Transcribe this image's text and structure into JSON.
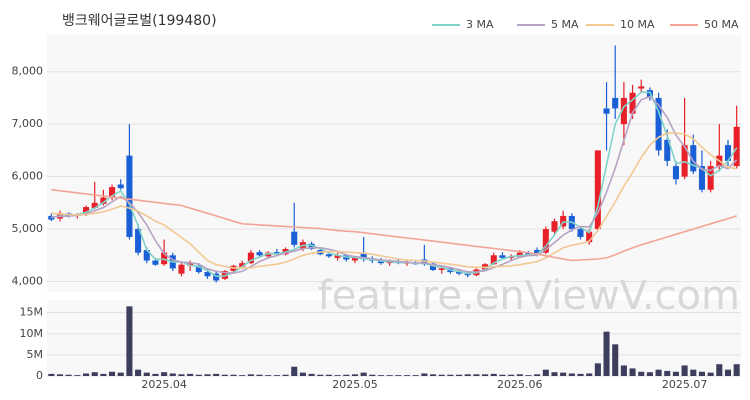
{
  "chart_data": [
    {
      "type": "candlestick",
      "title": "뱅크웨어글로벌(199480)",
      "watermark": "feature.enViewV.com",
      "up_color": "#e8202a",
      "down_color": "#1a5fd6",
      "grid": true,
      "ylim": [
        3800,
        8700
      ],
      "yticks": [
        {
          "value": 4000,
          "label": "4,000"
        },
        {
          "value": 5000,
          "label": "5,000"
        },
        {
          "value": 6000,
          "label": "6,000"
        },
        {
          "value": 7000,
          "label": "7,000"
        },
        {
          "value": 8000,
          "label": "8,000"
        }
      ],
      "open": [
        5250,
        5200,
        5300,
        5250,
        5280,
        5400,
        5480,
        5600,
        5850,
        6400,
        5000,
        4600,
        4400,
        4330,
        4500,
        4150,
        4300,
        4300,
        4180,
        4150,
        4050,
        4200,
        4280,
        4350,
        4560,
        4480,
        4560,
        4520,
        4950,
        4620,
        4720,
        4600,
        4520,
        4450,
        4500,
        4400,
        4550,
        4420,
        4400,
        4350,
        4380,
        4350,
        4360,
        4420,
        4340,
        4220,
        4250,
        4180,
        4150,
        4120,
        4230,
        4330,
        4500,
        4450,
        4470,
        4550,
        4600,
        4550,
        4950,
        5050,
        5250,
        5000,
        4750,
        5000,
        7300,
        7500,
        7000,
        7200,
        7680,
        7650,
        7500,
        6700,
        6200,
        6000,
        6600,
        6200,
        5750,
        6200,
        6600,
        6200
      ],
      "high": [
        5300,
        5350,
        5320,
        5300,
        5450,
        5900,
        5750,
        5850,
        5950,
        7000,
        5100,
        4650,
        4450,
        4800,
        4550,
        4350,
        4400,
        4350,
        4250,
        4200,
        4220,
        4320,
        4400,
        4600,
        4600,
        4580,
        4620,
        4650,
        5500,
        4800,
        4760,
        4650,
        4580,
        4550,
        4520,
        4480,
        4850,
        4480,
        4450,
        4420,
        4420,
        4400,
        4400,
        4700,
        4380,
        4280,
        4280,
        4220,
        4200,
        4250,
        4350,
        4550,
        4560,
        4520,
        4600,
        4580,
        4650,
        5050,
        5200,
        5350,
        5300,
        5050,
        5000,
        6500,
        7800,
        8500,
        7800,
        7750,
        7850,
        7700,
        7600,
        6900,
        6300,
        7500,
        6800,
        6500,
        6300,
        7000,
        6700,
        7350
      ],
      "low": [
        5150,
        5150,
        5220,
        5200,
        5250,
        5380,
        5450,
        5550,
        5750,
        4800,
        4500,
        4350,
        4300,
        4300,
        4200,
        4100,
        4200,
        4150,
        4050,
        3980,
        4030,
        4150,
        4250,
        4330,
        4480,
        4450,
        4500,
        4500,
        4650,
        4580,
        4600,
        4500,
        4450,
        4400,
        4380,
        4350,
        4380,
        4350,
        4320,
        4300,
        4330,
        4300,
        4320,
        4300,
        4200,
        4150,
        4150,
        4120,
        4080,
        4100,
        4200,
        4320,
        4420,
        4400,
        4450,
        4480,
        4480,
        4520,
        4900,
        5000,
        4950,
        4800,
        4700,
        4950,
        6500,
        7100,
        6600,
        7100,
        7600,
        7450,
        6400,
        6200,
        5850,
        5950,
        6050,
        5700,
        5700,
        6100,
        6200,
        6150
      ],
      "close": [
        5180,
        5300,
        5250,
        5280,
        5420,
        5500,
        5600,
        5800,
        5780,
        4850,
        4550,
        4400,
        4320,
        4550,
        4250,
        4320,
        4350,
        4180,
        4100,
        4020,
        4200,
        4300,
        4350,
        4550,
        4500,
        4550,
        4520,
        4620,
        4700,
        4750,
        4620,
        4520,
        4480,
        4500,
        4420,
        4450,
        4420,
        4400,
        4350,
        4380,
        4350,
        4360,
        4330,
        4340,
        4220,
        4250,
        4180,
        4150,
        4120,
        4230,
        4330,
        4500,
        4450,
        4480,
        4550,
        4500,
        4520,
        5000,
        5150,
        5250,
        5000,
        4850,
        4950,
        6500,
        7200,
        7300,
        7500,
        7600,
        7720,
        7500,
        6500,
        6300,
        5950,
        6600,
        6100,
        5750,
        6200,
        6400,
        6300,
        6950
      ],
      "series": [
        {
          "name": "3 MA",
          "color": "#7fd3c8",
          "values": [
            5220,
            5250,
            5243,
            5277,
            5317,
            5400,
            5507,
            5633,
            5727,
            5477,
            5060,
            4600,
            4423,
            4423,
            4373,
            4373,
            4307,
            4283,
            4210,
            4100,
            4107,
            4173,
            4283,
            4400,
            4467,
            4533,
            4523,
            4563,
            4613,
            4690,
            4690,
            4630,
            4540,
            4500,
            4467,
            4457,
            4430,
            4423,
            4390,
            4377,
            4360,
            4363,
            4347,
            4343,
            4297,
            4270,
            4217,
            4193,
            4150,
            4167,
            4227,
            4353,
            4427,
            4477,
            4493,
            4510,
            4523,
            4673,
            4890,
            5133,
            5133,
            5033,
            4933,
            5433,
            6217,
            7000,
            7333,
            7467,
            7607,
            7607,
            7240,
            6767,
            6250,
            6283,
            6217,
            6150,
            6017,
            6117,
            6300,
            6550
          ]
        },
        {
          "name": "5 MA",
          "color": "#b7a2c4",
          "values": [
            5230,
            5240,
            5250,
            5260,
            5286,
            5350,
            5410,
            5520,
            5620,
            5506,
            5316,
            5076,
            4780,
            4534,
            4414,
            4368,
            4358,
            4330,
            4240,
            4194,
            4170,
            4160,
            4194,
            4284,
            4380,
            4450,
            4494,
            4548,
            4578,
            4628,
            4642,
            4642,
            4614,
            4574,
            4508,
            4474,
            4454,
            4438,
            4408,
            4400,
            4380,
            4368,
            4354,
            4352,
            4320,
            4300,
            4264,
            4228,
            4184,
            4186,
            4202,
            4266,
            4326,
            4398,
            4462,
            4496,
            4500,
            4610,
            4744,
            4884,
            4984,
            5050,
            5040,
            5310,
            5700,
            6160,
            6690,
            7220,
            7464,
            7524,
            7364,
            7124,
            6794,
            6570,
            6290,
            6140,
            6120,
            6210,
            6150,
            6320
          ]
        },
        {
          "name": "10 MA",
          "color": "#f2c893",
          "values": [
            5300,
            5290,
            5280,
            5270,
            5280,
            5300,
            5330,
            5380,
            5440,
            5400,
            5340,
            5250,
            5150,
            5080,
            4960,
            4840,
            4720,
            4560,
            4400,
            4320,
            4290,
            4260,
            4260,
            4260,
            4290,
            4310,
            4330,
            4370,
            4430,
            4500,
            4540,
            4560,
            4570,
            4570,
            4560,
            4550,
            4540,
            4520,
            4490,
            4460,
            4430,
            4410,
            4400,
            4390,
            4370,
            4350,
            4330,
            4310,
            4280,
            4270,
            4270,
            4280,
            4290,
            4300,
            4320,
            4350,
            4380,
            4450,
            4550,
            4640,
            4690,
            4720,
            4770,
            4970,
            5240,
            5520,
            5820,
            6080,
            6360,
            6600,
            6750,
            6830,
            6830,
            6810,
            6720,
            6560,
            6420,
            6300,
            6180,
            6150
          ]
        },
        {
          "name": "50 MA",
          "color": "#f2a595",
          "values": [
            5750,
            5730,
            5710,
            5690,
            5670,
            5650,
            5630,
            5610,
            5590,
            5570,
            5550,
            5530,
            5510,
            5490,
            5470,
            5450,
            5400,
            5350,
            5300,
            5250,
            5200,
            5150,
            5100,
            5090,
            5080,
            5070,
            5060,
            5050,
            5040,
            5030,
            5020,
            5010,
            4990,
            4970,
            4960,
            4950,
            4930,
            4910,
            4890,
            4870,
            4850,
            4830,
            4810,
            4790,
            4770,
            4750,
            4730,
            4710,
            4690,
            4670,
            4650,
            4630,
            4610,
            4590,
            4570,
            4550,
            4520,
            4490,
            4460,
            4430,
            4400,
            4410,
            4420,
            4430,
            4450,
            4510,
            4580,
            4640,
            4700,
            4750,
            4800,
            4850,
            4900,
            4950,
            5000,
            5050,
            5100,
            5150,
            5200,
            5250
          ]
        }
      ]
    },
    {
      "type": "bar",
      "color": "#3d3d5e",
      "grid": true,
      "ylim": [
        0,
        18000000
      ],
      "yticks": [
        0,
        {
          "value": 5000000,
          "label": "5M"
        },
        {
          "value": 10000000,
          "label": "10M"
        },
        {
          "value": 15000000,
          "label": "15M"
        }
      ],
      "categories": [
        null,
        null,
        null,
        null,
        null,
        null,
        null,
        null,
        null,
        null,
        null,
        null,
        null,
        "2025.04",
        null,
        null,
        null,
        null,
        null,
        null,
        null,
        null,
        null,
        null,
        null,
        null,
        null,
        null,
        null,
        null,
        null,
        null,
        null,
        null,
        null,
        "2025.05",
        null,
        null,
        null,
        null,
        null,
        null,
        null,
        null,
        null,
        null,
        null,
        null,
        null,
        null,
        null,
        null,
        null,
        null,
        "2025.06",
        null,
        null,
        null,
        null,
        null,
        null,
        null,
        null,
        null,
        null,
        null,
        null,
        null,
        null,
        null,
        null,
        null,
        null,
        "2025.07",
        null,
        null,
        null,
        null,
        null,
        null
      ],
      "values": [
        500000,
        400000,
        300000,
        200000,
        600000,
        900000,
        500000,
        1000000,
        800000,
        16500000,
        1500000,
        800000,
        500000,
        900000,
        600000,
        400000,
        500000,
        300000,
        400000,
        500000,
        300000,
        300000,
        200000,
        400000,
        300000,
        200000,
        200000,
        300000,
        2200000,
        800000,
        500000,
        300000,
        300000,
        200000,
        300000,
        400000,
        800000,
        300000,
        200000,
        200000,
        200000,
        200000,
        200000,
        600000,
        400000,
        300000,
        300000,
        300000,
        400000,
        400000,
        400000,
        500000,
        300000,
        300000,
        400000,
        200000,
        400000,
        1500000,
        900000,
        800000,
        600000,
        500000,
        600000,
        3000000,
        10500000,
        7500000,
        2500000,
        1800000,
        1000000,
        900000,
        1500000,
        1200000,
        1000000,
        2500000,
        1500000,
        1000000,
        800000,
        2800000,
        1500000,
        2800000
      ]
    }
  ]
}
